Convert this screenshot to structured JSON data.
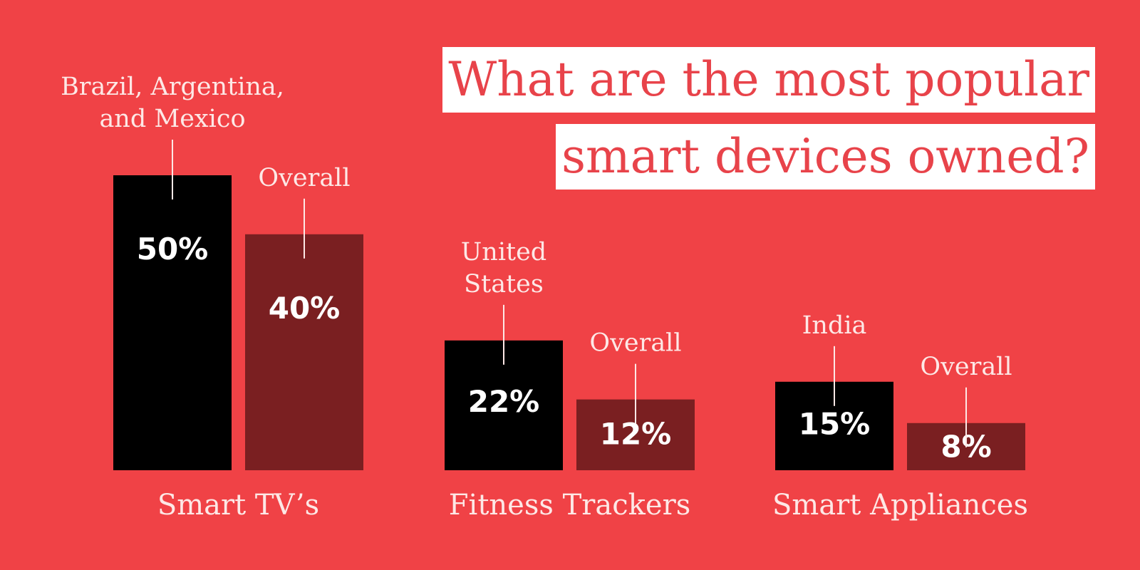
{
  "title_lines": [
    "What are the most popular",
    "smart devices owned?"
  ],
  "colors": {
    "background": "#f04246",
    "highlight_bar": "#000000",
    "overall_bar": "#7a1f21",
    "title_text": "#e8434a",
    "title_box": "#ffffff",
    "label_text": "#fde8e6"
  },
  "chart_data": {
    "type": "bar",
    "title": "What are the most popular smart devices owned?",
    "categories": [
      "Smart TV’s",
      "Fitness Trackers",
      "Smart Appliances"
    ],
    "ylim": [
      0,
      50
    ],
    "grid": false,
    "legend": "none",
    "series": [
      {
        "role": "highlight",
        "values": [
          50,
          22,
          15
        ],
        "value_labels": [
          "50%",
          "22%",
          "15%"
        ],
        "annotations": [
          [
            "Brazil, Argentina,",
            "and Mexico"
          ],
          [
            "United",
            "States"
          ],
          [
            "India"
          ]
        ]
      },
      {
        "role": "overall",
        "values": [
          40,
          12,
          8
        ],
        "value_labels": [
          "40%",
          "12%",
          "8%"
        ],
        "annotations": [
          [
            "Overall"
          ],
          [
            "Overall"
          ],
          [
            "Overall"
          ]
        ]
      }
    ]
  }
}
